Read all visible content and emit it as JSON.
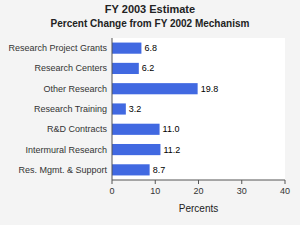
{
  "chart_data": {
    "type": "bar",
    "orientation": "horizontal",
    "title": "FY 2003 Estimate",
    "subtitle": "Percent Change from FY 2002 Mechanism",
    "categories": [
      "Research Project Grants",
      "Research Centers",
      "Other Research",
      "Research Training",
      "R&D Contracts",
      "Intermural Research",
      "Res. Mgmt. & Support"
    ],
    "values": [
      6.8,
      6.2,
      19.8,
      3.2,
      11.0,
      11.2,
      8.7
    ],
    "value_labels": [
      "6.8",
      "6.2",
      "19.8",
      "3.2",
      "11.0",
      "11.2",
      "8.7"
    ],
    "data_labels": true,
    "color": "#4169E1",
    "xlabel": "Percents",
    "xlim": [
      0,
      40
    ],
    "xticks": [
      0,
      10,
      20,
      30,
      40
    ],
    "grid": false
  }
}
